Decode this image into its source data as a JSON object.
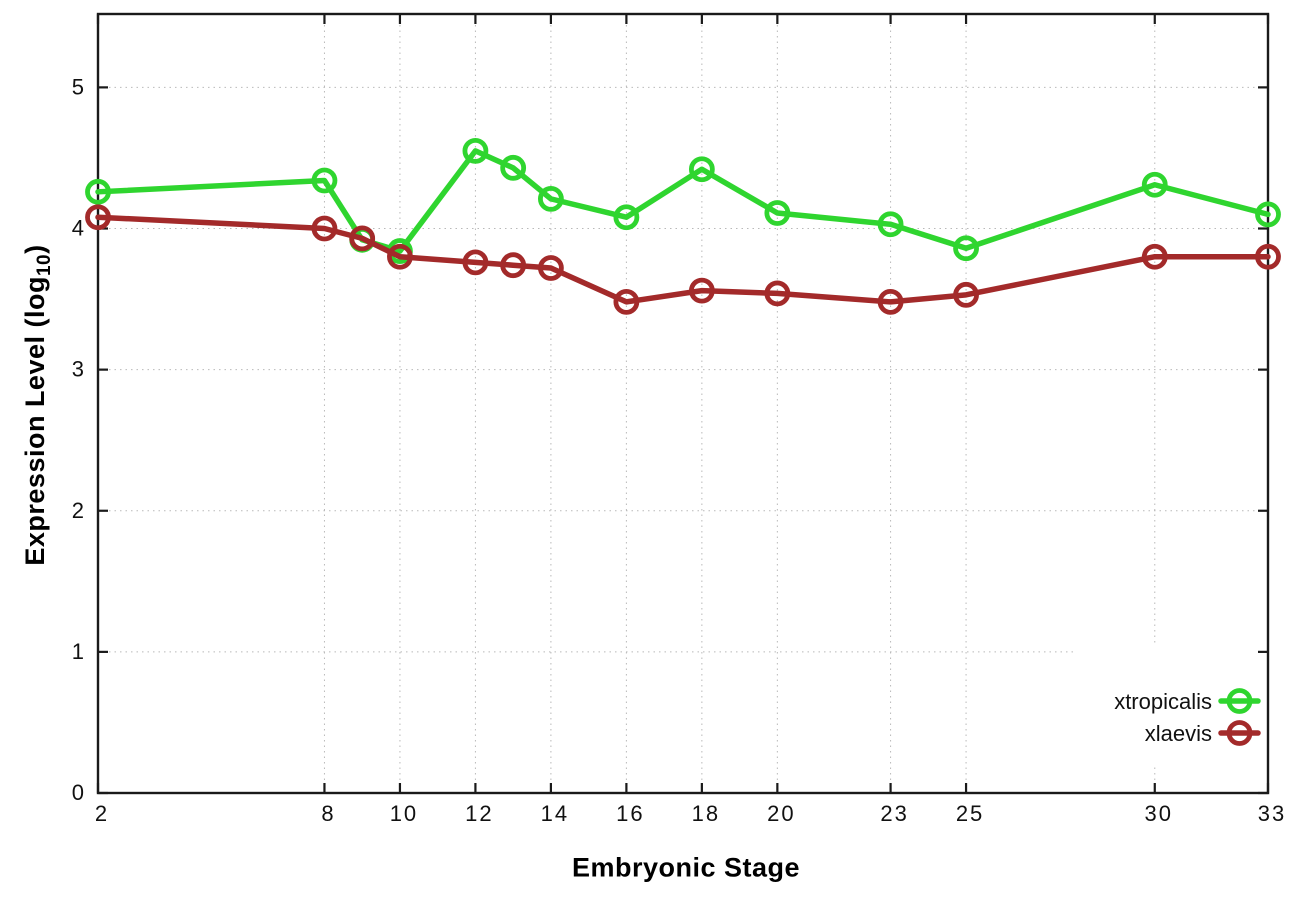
{
  "chart_data": {
    "type": "line",
    "title": "",
    "xlabel": "Embryonic Stage",
    "ylabel": {
      "prefix": "Expression Level (log",
      "sub": "10",
      "suffix": ")"
    },
    "x_ticks": [
      2,
      8,
      10,
      12,
      14,
      16,
      18,
      20,
      23,
      25,
      30,
      33
    ],
    "y_ticks": [
      0,
      1,
      2,
      3,
      4,
      5
    ],
    "xlim": [
      2,
      33
    ],
    "ylim": [
      0,
      5.52
    ],
    "grid": "dotted",
    "legend_position": "inside-right",
    "x": [
      2,
      8,
      9,
      10,
      12,
      13,
      14,
      16,
      18,
      20,
      23,
      25,
      30,
      33
    ],
    "series": [
      {
        "name": "xtropicalis",
        "color": "#2fd52f",
        "values": [
          4.26,
          4.34,
          3.92,
          3.84,
          4.55,
          4.43,
          4.21,
          4.08,
          4.42,
          4.11,
          4.03,
          3.86,
          4.31,
          4.1
        ]
      },
      {
        "name": "xlaevis",
        "color": "#a32a2a",
        "values": [
          4.08,
          4.0,
          3.93,
          3.8,
          3.76,
          3.74,
          3.72,
          3.48,
          3.56,
          3.54,
          3.48,
          3.53,
          3.8,
          3.8
        ]
      }
    ],
    "marker": "open-circle",
    "colors": {
      "border": "#1a1a1a",
      "grid": "#b9b9b9",
      "tick_text": "#111111"
    }
  }
}
